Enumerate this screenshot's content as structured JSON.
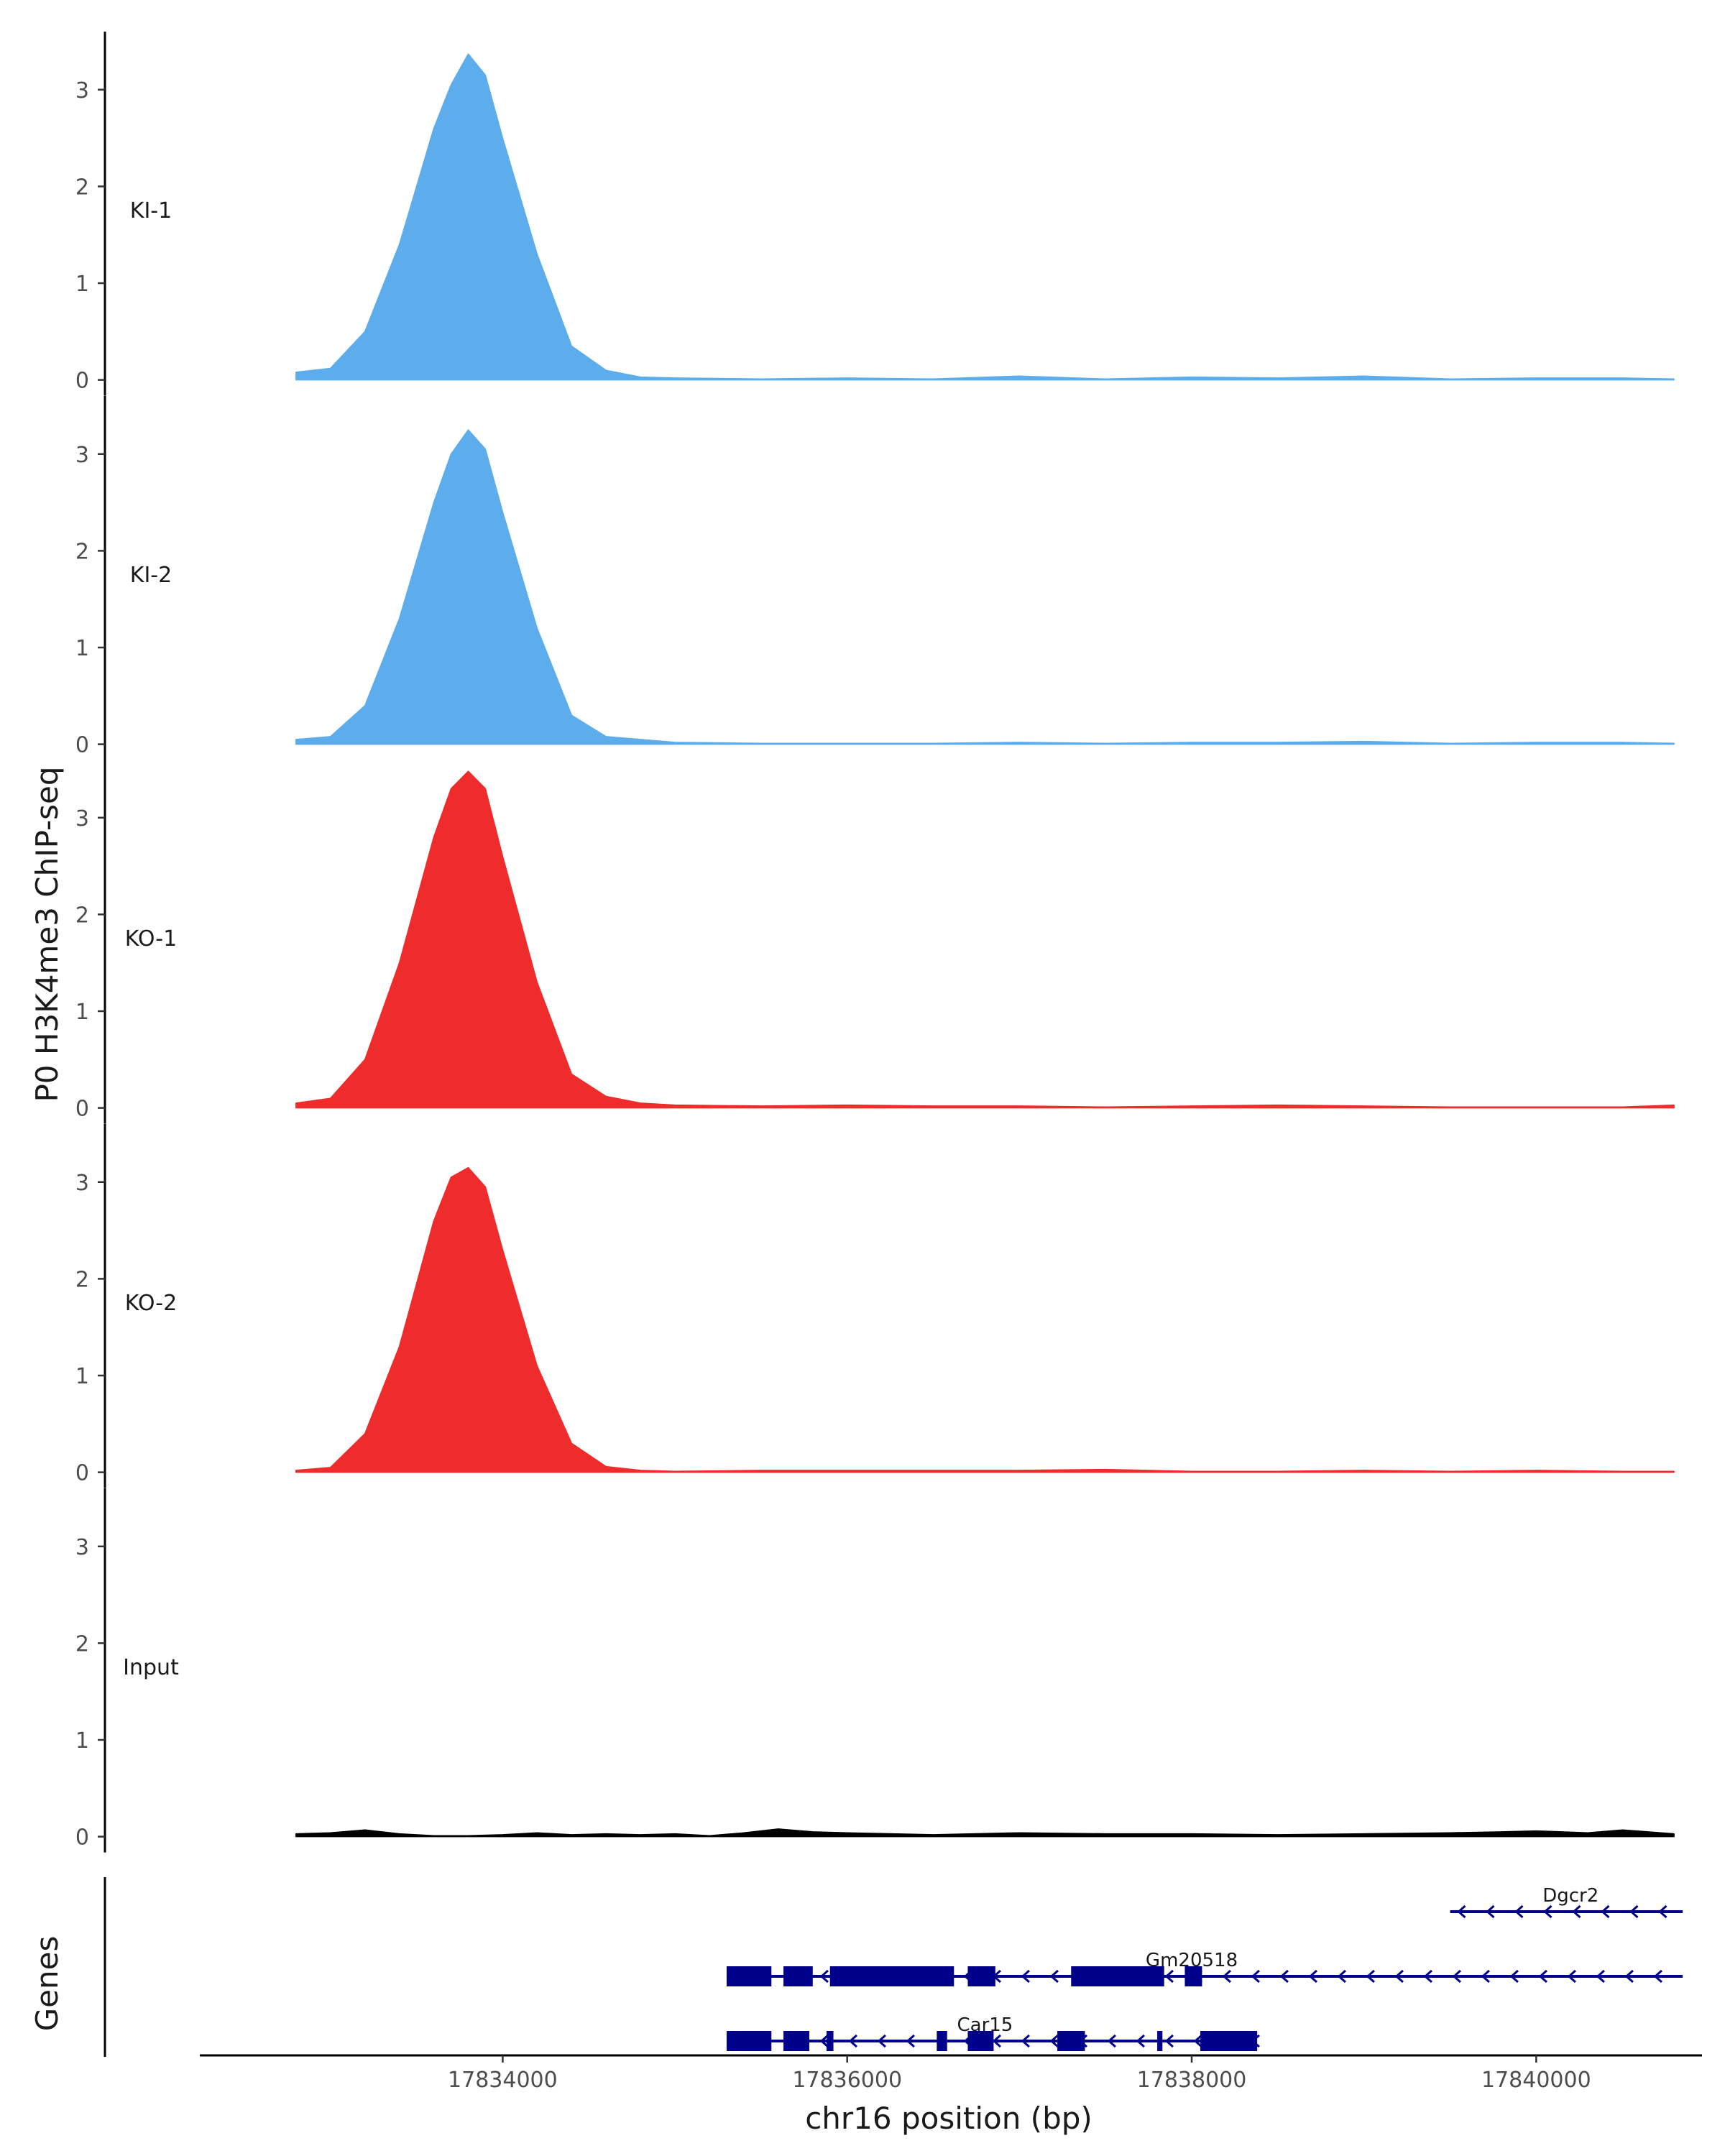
{
  "chart_data": {
    "type": "area",
    "ylabel": "P0 H3K4me3 ChIP-seq",
    "xlabel": "chr16 position (bp)",
    "xlim": [
      17832250,
      17840950
    ],
    "ylim": [
      0,
      3.6
    ],
    "y_ticks": [
      0,
      1,
      2,
      3
    ],
    "y_tick_labels": [
      "0",
      "1",
      "2",
      "3"
    ],
    "x_ticks": [
      17834000,
      17836000,
      17838000,
      17840000
    ],
    "x_tick_labels": [
      "17834000",
      "17836000",
      "17838000",
      "17840000"
    ],
    "tracks": [
      {
        "name": "KI-1",
        "color": "#5DADEC",
        "x": [
          17832800,
          17833000,
          17833200,
          17833400,
          17833600,
          17833700,
          17833800,
          17833900,
          17834000,
          17834200,
          17834400,
          17834600,
          17834800,
          17835000,
          17835500,
          17836000,
          17836500,
          17837000,
          17837500,
          17838000,
          17838500,
          17839000,
          17839500,
          17840000,
          17840500,
          17840800
        ],
        "values": [
          0.08,
          0.12,
          0.5,
          1.4,
          2.6,
          3.05,
          3.37,
          3.15,
          2.5,
          1.3,
          0.35,
          0.1,
          0.03,
          0.02,
          0.01,
          0.02,
          0.01,
          0.04,
          0.01,
          0.03,
          0.02,
          0.04,
          0.01,
          0.02,
          0.02,
          0.01
        ]
      },
      {
        "name": "KI-2",
        "color": "#5DADEC",
        "x": [
          17832800,
          17833000,
          17833200,
          17833400,
          17833600,
          17833700,
          17833800,
          17833900,
          17834000,
          17834200,
          17834400,
          17834600,
          17834800,
          17835000,
          17835500,
          17836000,
          17836500,
          17837000,
          17837500,
          17838000,
          17838500,
          17839000,
          17839500,
          17840000,
          17840500,
          17840800
        ],
        "values": [
          0.05,
          0.08,
          0.4,
          1.3,
          2.5,
          3.0,
          3.25,
          3.05,
          2.4,
          1.2,
          0.3,
          0.08,
          0.05,
          0.02,
          0.01,
          0.01,
          0.01,
          0.02,
          0.01,
          0.02,
          0.02,
          0.03,
          0.01,
          0.02,
          0.02,
          0.01
        ]
      },
      {
        "name": "KO-1",
        "color": "#EE2C2C",
        "x": [
          17832800,
          17833000,
          17833200,
          17833400,
          17833600,
          17833700,
          17833800,
          17833900,
          17834000,
          17834200,
          17834400,
          17834600,
          17834800,
          17835000,
          17835500,
          17836000,
          17836500,
          17837000,
          17837500,
          17838000,
          17838500,
          17839000,
          17839500,
          17840000,
          17840500,
          17840800
        ],
        "values": [
          0.05,
          0.1,
          0.5,
          1.5,
          2.8,
          3.3,
          3.48,
          3.3,
          2.6,
          1.3,
          0.35,
          0.12,
          0.05,
          0.03,
          0.02,
          0.03,
          0.02,
          0.02,
          0.01,
          0.02,
          0.03,
          0.02,
          0.01,
          0.01,
          0.01,
          0.03
        ]
      },
      {
        "name": "KO-2",
        "color": "#EE2C2C",
        "x": [
          17832800,
          17833000,
          17833200,
          17833400,
          17833600,
          17833700,
          17833800,
          17833900,
          17834000,
          17834200,
          17834400,
          17834600,
          17834800,
          17835000,
          17835500,
          17836000,
          17836500,
          17837000,
          17837500,
          17838000,
          17838500,
          17839000,
          17839500,
          17840000,
          17840500,
          17840800
        ],
        "values": [
          0.02,
          0.05,
          0.4,
          1.3,
          2.6,
          3.05,
          3.15,
          2.95,
          2.3,
          1.1,
          0.3,
          0.06,
          0.02,
          0.01,
          0.02,
          0.02,
          0.02,
          0.02,
          0.03,
          0.01,
          0.01,
          0.02,
          0.01,
          0.02,
          0.01,
          0.01
        ]
      },
      {
        "name": "Input",
        "color": "#000000",
        "x": [
          17832800,
          17833000,
          17833200,
          17833400,
          17833600,
          17833800,
          17834000,
          17834200,
          17834400,
          17834600,
          17834800,
          17835000,
          17835200,
          17835400,
          17835600,
          17835800,
          17836000,
          17836500,
          17837000,
          17837500,
          17838000,
          17838500,
          17839000,
          17839500,
          17839800,
          17840000,
          17840300,
          17840500,
          17840800
        ],
        "values": [
          0.03,
          0.04,
          0.07,
          0.03,
          0.01,
          0.01,
          0.02,
          0.04,
          0.02,
          0.03,
          0.02,
          0.03,
          0.01,
          0.04,
          0.08,
          0.05,
          0.04,
          0.02,
          0.04,
          0.03,
          0.03,
          0.02,
          0.03,
          0.04,
          0.05,
          0.06,
          0.04,
          0.07,
          0.03
        ]
      }
    ],
    "genes_track_label": "Genes",
    "genes": [
      {
        "name": "Dgcr2",
        "strand": "-",
        "row": 0,
        "start": 17839500,
        "end": 17840850,
        "exons": []
      },
      {
        "name": "Gm20518",
        "strand": "-",
        "row": 1,
        "start": 17835300,
        "end": 17840850,
        "exons": [
          [
            17835300,
            17835560
          ],
          [
            17835630,
            17835800
          ],
          [
            17835900,
            17836620
          ],
          [
            17836700,
            17836860
          ],
          [
            17837300,
            17837840
          ],
          [
            17837960,
            17838060
          ]
        ]
      },
      {
        "name": "Car15",
        "strand": "-",
        "row": 2,
        "start": 17835300,
        "end": 17838380,
        "exons": [
          [
            17835300,
            17835560
          ],
          [
            17835630,
            17835780
          ],
          [
            17835880,
            17835920
          ],
          [
            17836520,
            17836580
          ],
          [
            17836700,
            17836850
          ],
          [
            17837220,
            17837380
          ],
          [
            17837800,
            17837830
          ],
          [
            17838050,
            17838380
          ]
        ]
      }
    ],
    "gene_color": "#00008B"
  }
}
